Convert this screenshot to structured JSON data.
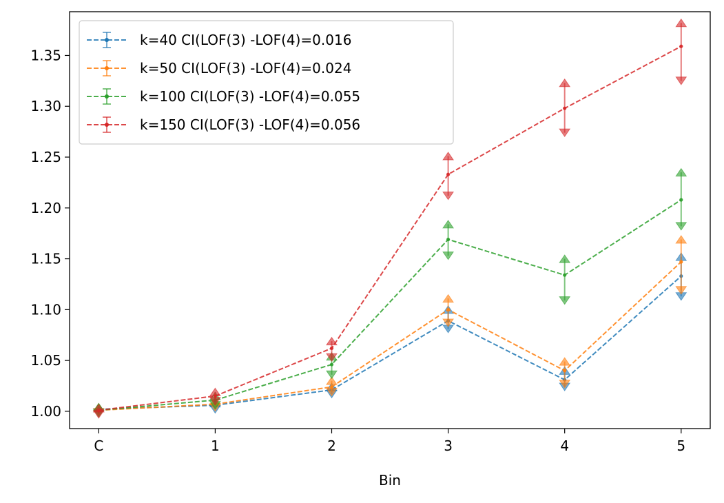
{
  "chart_data": {
    "type": "line",
    "title": "",
    "xlabel": "Bin",
    "ylabel": "",
    "categories": [
      "C",
      "1",
      "2",
      "3",
      "4",
      "5"
    ],
    "ylim": [
      0.983,
      1.393
    ],
    "yticks": [
      1.0,
      1.05,
      1.1,
      1.15,
      1.2,
      1.25,
      1.3,
      1.35
    ],
    "ytick_labels": [
      "1.00",
      "1.05",
      "1.10",
      "1.15",
      "1.20",
      "1.25",
      "1.30",
      "1.35"
    ],
    "grid": false,
    "legend": "top-left",
    "line_style": "dashed",
    "error_bars": "confidence interval",
    "series": [
      {
        "name": "k=40 CI(LOF(3) -LOF(4)=0.016",
        "color": "#1f77b4",
        "values": [
          1.002,
          1.006,
          1.021,
          1.089,
          1.031,
          1.133
        ],
        "lower": [
          0.999,
          1.002,
          1.017,
          1.081,
          1.024,
          1.113
        ],
        "upper": [
          1.004,
          1.008,
          1.024,
          1.1,
          1.04,
          1.152
        ]
      },
      {
        "name": "k=50 CI(LOF(3) -LOF(4)=0.024",
        "color": "#ff7f0e",
        "values": [
          1.001,
          1.007,
          1.024,
          1.1,
          1.04,
          1.147
        ],
        "lower": [
          0.999,
          1.004,
          1.019,
          1.087,
          1.027,
          1.119
        ],
        "upper": [
          1.004,
          1.01,
          1.03,
          1.111,
          1.049,
          1.169
        ]
      },
      {
        "name": "k=100 CI(LOF(3) -LOF(4)=0.055",
        "color": "#2ca02c",
        "values": [
          1.001,
          1.011,
          1.046,
          1.169,
          1.134,
          1.208
        ],
        "lower": [
          0.998,
          1.006,
          1.036,
          1.153,
          1.109,
          1.182
        ],
        "upper": [
          1.004,
          1.015,
          1.054,
          1.184,
          1.15,
          1.235
        ]
      },
      {
        "name": "k=150 CI(LOF(3) -LOF(4)=0.056",
        "color": "#d62728",
        "values": [
          1.001,
          1.015,
          1.062,
          1.233,
          1.298,
          1.359
        ],
        "lower": [
          0.997,
          1.01,
          1.053,
          1.212,
          1.274,
          1.325
        ],
        "upper": [
          1.003,
          1.019,
          1.069,
          1.251,
          1.323,
          1.382
        ]
      }
    ]
  }
}
